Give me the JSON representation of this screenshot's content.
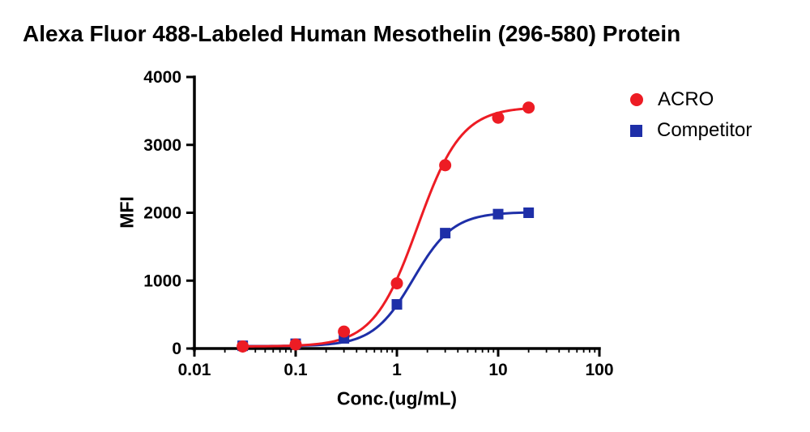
{
  "chart_data": {
    "type": "line",
    "title": "Alexa Fluor 488-Labeled Human Mesothelin (296-580) Protein",
    "xlabel": "Conc.(ug/mL)",
    "ylabel": "MFI",
    "x_scale": "log",
    "xlim": [
      0.01,
      100
    ],
    "ylim": [
      0,
      4000
    ],
    "x_ticks": [
      0.01,
      0.1,
      1,
      10,
      100
    ],
    "x_tick_labels": [
      "0.01",
      "0.1",
      "1",
      "10",
      "100"
    ],
    "y_ticks": [
      0,
      1000,
      2000,
      3000,
      4000
    ],
    "y_tick_labels": [
      "0",
      "1000",
      "2000",
      "3000",
      "4000"
    ],
    "grid": false,
    "legend_position": "right",
    "axis_color": "#000000",
    "series": [
      {
        "name": "ACRO",
        "color": "#ed1c24",
        "marker": "circle",
        "x": [
          0.03,
          0.1,
          0.3,
          1,
          3,
          10,
          20
        ],
        "y": [
          30,
          60,
          250,
          960,
          2700,
          3400,
          3550
        ],
        "fit": {
          "bottom": 30,
          "top": 3560,
          "ec50": 1.6,
          "hill": 2.0
        }
      },
      {
        "name": "Competitor",
        "color": "#1e2fa8",
        "marker": "square",
        "x": [
          0.03,
          0.1,
          0.3,
          1,
          3,
          10,
          20
        ],
        "y": [
          40,
          70,
          150,
          650,
          1700,
          1980,
          2000
        ],
        "fit": {
          "bottom": 35,
          "top": 2010,
          "ec50": 1.45,
          "hill": 2.2
        }
      }
    ]
  }
}
